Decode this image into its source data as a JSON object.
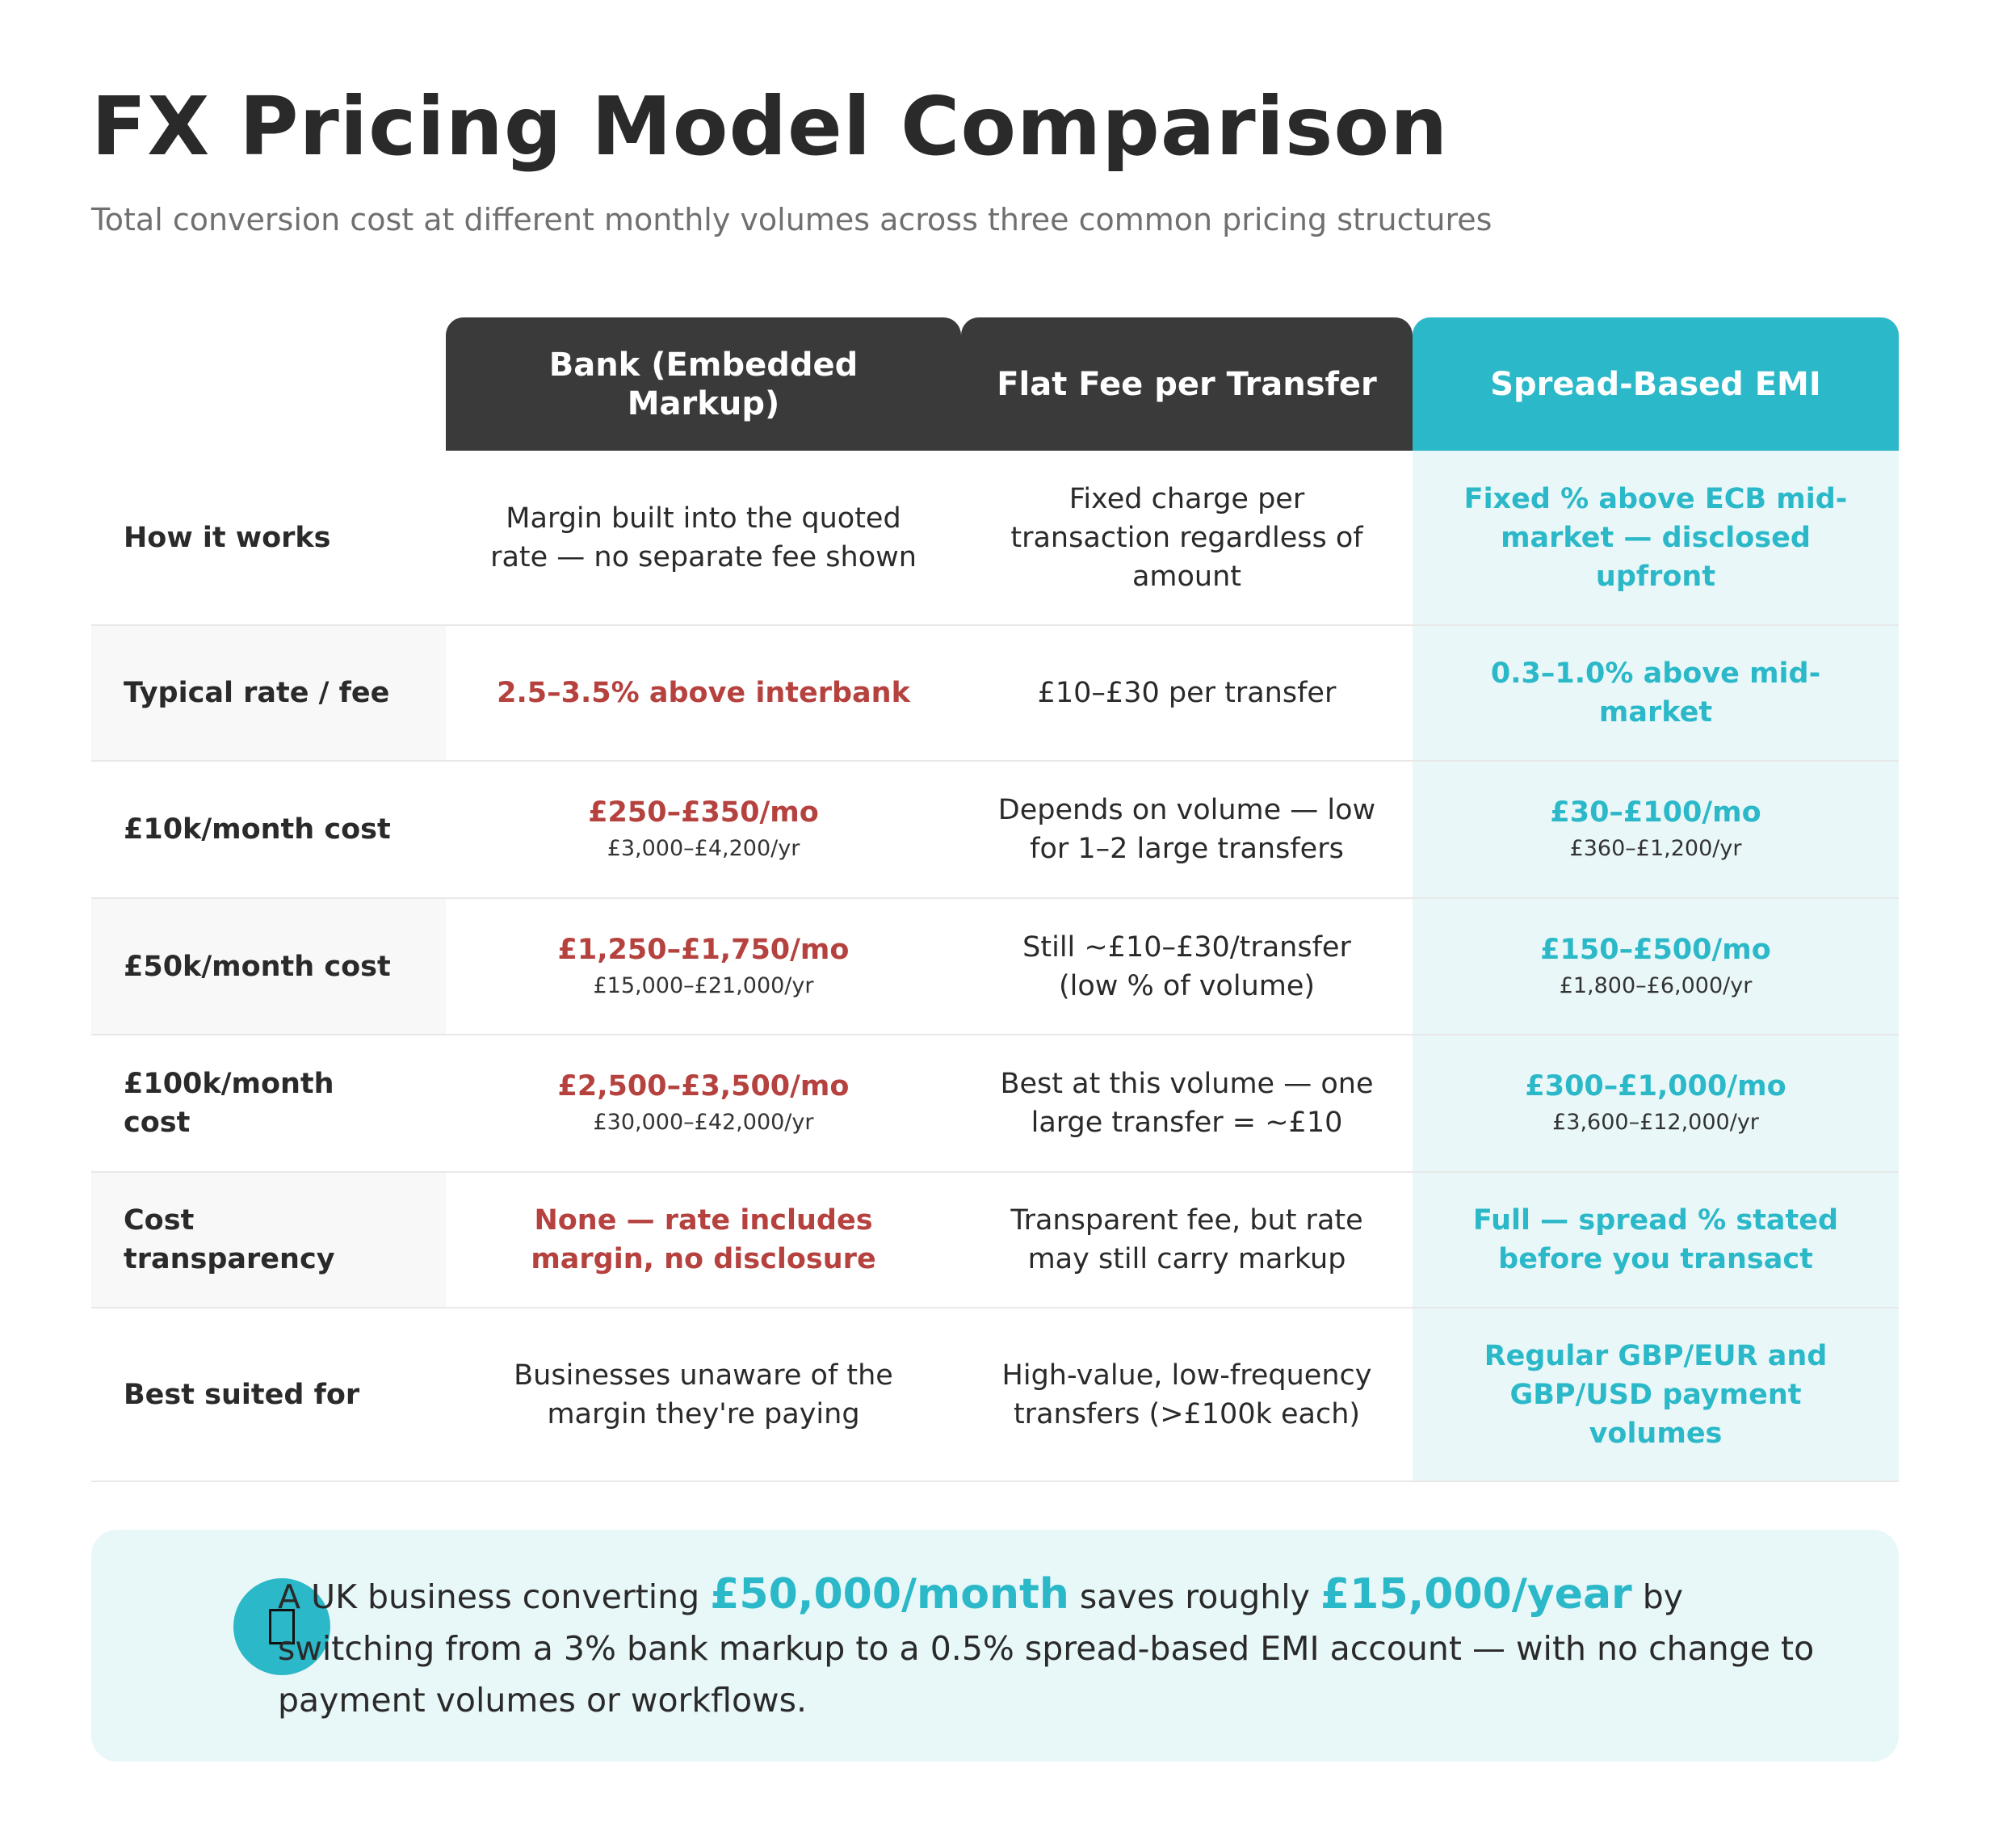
{
  "header": {
    "title": "FX Pricing Model Comparison",
    "subtitle": "Total conversion cost at different monthly volumes across three common pricing structures"
  },
  "table": {
    "columns": [
      "Bank (Embedded Markup)",
      "Flat Fee per Transfer",
      "Spread-Based EMI"
    ],
    "rows": [
      {
        "label": "How it works",
        "cells": [
          "Margin built into the quoted rate — no separate fee shown",
          "Fixed charge per transaction regardless of amount",
          "Fixed % above ECB mid-market — disclosed upfront"
        ]
      },
      {
        "label": "Typical rate / fee",
        "cells": [
          "2.5–3.5% above interbank",
          "£10–£30 per transfer",
          "0.3–1.0% above mid-market"
        ]
      },
      {
        "label": "£10k/month cost",
        "cells": [
          {
            "main": "£250–£350/mo",
            "sub": "£3,000–£4,200/yr"
          },
          "Depends on volume — low for 1–2 large transfers",
          {
            "main": "£30–£100/mo",
            "sub": "£360–£1,200/yr"
          }
        ]
      },
      {
        "label": "£50k/month cost",
        "cells": [
          {
            "main": "£1,250–£1,750/mo",
            "sub": "£15,000–£21,000/yr"
          },
          "Still ~£10–£30/transfer (low % of volume)",
          {
            "main": "£150–£500/mo",
            "sub": "£1,800–£6,000/yr"
          }
        ]
      },
      {
        "label": "£100k/month cost",
        "cells": [
          {
            "main": "£2,500–£3,500/mo",
            "sub": "£30,000–£42,000/yr"
          },
          "Best at this volume — one large transfer = ~£10",
          {
            "main": "£300–£1,000/mo",
            "sub": "£3,600–£12,000/yr"
          }
        ]
      },
      {
        "label": "Cost transparency",
        "cells": [
          "None — rate includes margin, no disclosure",
          "Transparent fee, but rate may still carry markup",
          "Full — spread % stated before you transact"
        ]
      },
      {
        "label": "Best suited for",
        "cells": [
          "Businesses unaware of the margin they're paying",
          "High-value, low-frequency transfers (>£100k each)",
          "Regular GBP/EUR and GBP/USD payment volumes"
        ]
      }
    ]
  },
  "callout": {
    "parts": [
      "A UK business converting ",
      "£50,000/month",
      " saves roughly ",
      "£15,000/year",
      " by switching from a 3% bank markup to a 0.5% spread-based EMI account — with no change to payment volumes or workflows."
    ]
  }
}
